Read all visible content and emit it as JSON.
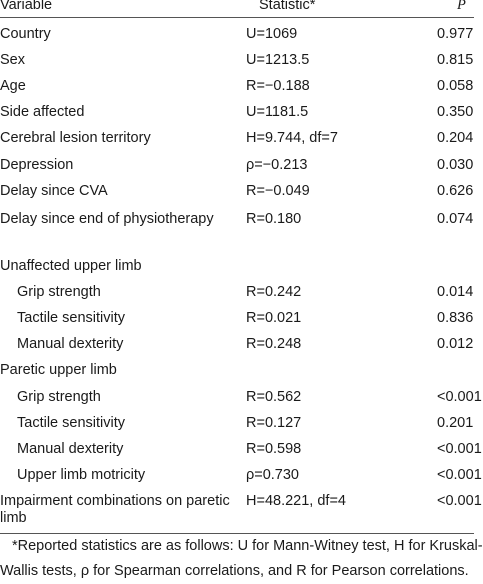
{
  "header": {
    "variable": "Variable",
    "statistic": "Statistic*",
    "p": "P"
  },
  "rows": [
    {
      "variable": "Country",
      "statistic": "U=1069",
      "p": "0.977",
      "sub": false
    },
    {
      "variable": "Sex",
      "statistic": "U=1213.5",
      "p": "0.815",
      "sub": false
    },
    {
      "variable": "Age",
      "statistic": "R=−0.188",
      "p": "0.058",
      "sub": false
    },
    {
      "variable": "Side affected",
      "statistic": "U=1181.5",
      "p": "0.350",
      "sub": false
    },
    {
      "variable": "Cerebral lesion territory",
      "statistic": "H=9.744, df=7",
      "p": "0.204",
      "sub": false
    },
    {
      "variable": "Depression",
      "statistic": "ρ=−0.213",
      "p": "0.030",
      "sub": false
    },
    {
      "variable": "Delay since CVA",
      "statistic": "R=−0.049",
      "p": "0.626",
      "sub": false
    },
    {
      "variable": "Delay since end of physiotherapy",
      "statistic": "R=0.180",
      "p": "0.074",
      "sub": false
    },
    {
      "variable": "Unaffected upper limb",
      "statistic": "",
      "p": "",
      "sub": false
    },
    {
      "variable": "Grip strength",
      "statistic": "R=0.242",
      "p": "0.014",
      "sub": true
    },
    {
      "variable": "Tactile sensitivity",
      "statistic": "R=0.021",
      "p": "0.836",
      "sub": true
    },
    {
      "variable": "Manual dexterity",
      "statistic": "R=0.248",
      "p": "0.012",
      "sub": true
    },
    {
      "variable": "Paretic upper limb",
      "statistic": "",
      "p": "",
      "sub": false
    },
    {
      "variable": "Grip strength",
      "statistic": "R=0.562",
      "p": "<0.001",
      "sub": true
    },
    {
      "variable": "Tactile sensitivity",
      "statistic": "R=0.127",
      "p": "0.201",
      "sub": true
    },
    {
      "variable": "Manual dexterity",
      "statistic": "R=0.598",
      "p": "<0.001",
      "sub": true
    },
    {
      "variable": "Upper limb motricity",
      "statistic": "ρ=0.730",
      "p": "<0.001",
      "sub": true
    },
    {
      "variable": "Impairment combinations on paretic limb",
      "statistic": "H=48.221, df=4",
      "p": "<0.001",
      "sub": false
    }
  ],
  "footnote": {
    "line1": "*Reported statistics are as follows: U for Mann-Witney test, H for Kruskal-",
    "line2": "Wallis tests, ρ for Spearman correlations, and R for Pearson correlations."
  }
}
